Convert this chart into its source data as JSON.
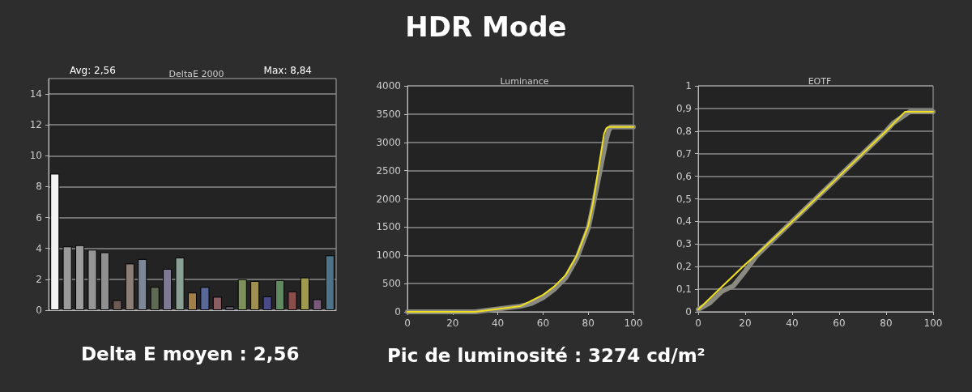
{
  "chart_data": [
    {
      "type": "other",
      "title": "HDR Mode"
    },
    {
      "type": "bar",
      "title": "DeltaE 2000",
      "annotations": [
        "Avg: 2,56",
        "Max: 8,84",
        "Delta E moyen : 2,56"
      ],
      "categories": [
        null,
        null,
        null,
        null,
        null,
        null,
        null,
        null,
        null,
        null,
        null,
        null,
        null,
        null,
        null,
        null,
        null,
        null,
        null,
        null,
        null,
        null,
        null
      ],
      "values": [
        8.84,
        4.13,
        4.21,
        3.92,
        3.75,
        0.65,
        3.02,
        3.31,
        1.51,
        2.68,
        3.41,
        1.14,
        1.5,
        0.87,
        0.25,
        2.0,
        1.89,
        0.9,
        1.95,
        1.22,
        2.12,
        0.71,
        3.55
      ],
      "colors": [
        "#f2f2f2",
        "#9a9a9a",
        "#9c9c9c",
        "#959595",
        "#909090",
        "#6e5a55",
        "#8a7e76",
        "#7c8898",
        "#5e6a52",
        "#7e7a94",
        "#8aa094",
        "#a08048",
        "#5a6898",
        "#8a5e62",
        "#5e5a66",
        "#7e905a",
        "#a09050",
        "#4a4a88",
        "#5e8a5e",
        "#8a4e4a",
        "#a09a50",
        "#7a5a7a",
        "#4e7288"
      ],
      "ylim": [
        0,
        15
      ],
      "yticks": [
        0,
        2,
        4,
        6,
        8,
        10,
        12,
        14
      ],
      "grid": "y"
    },
    {
      "type": "line",
      "title": "Luminance",
      "annotations": [
        "Pic de luminosité : 3274 cd/m²"
      ],
      "series": [
        {
          "color": "#8a8a80",
          "x": [
            0,
            30,
            40,
            50,
            55,
            60,
            65,
            70,
            75,
            80,
            82,
            84,
            86,
            88,
            89,
            90,
            100
          ],
          "values": [
            0,
            0,
            50,
            100,
            150,
            250,
            400,
            600,
            950,
            1480,
            1850,
            2250,
            2650,
            3050,
            3200,
            3274,
            3274
          ]
        },
        {
          "color": "#f0e020",
          "x": [
            0,
            30,
            40,
            50,
            55,
            60,
            65,
            70,
            75,
            80,
            82,
            84,
            86,
            87,
            88,
            89,
            100
          ],
          "values": [
            0,
            0,
            50,
            100,
            200,
            300,
            450,
            650,
            1000,
            1520,
            1900,
            2400,
            2900,
            3150,
            3250,
            3274,
            3274
          ]
        }
      ],
      "xlim": [
        0,
        100
      ],
      "xticks": [
        0,
        20,
        40,
        60,
        80,
        100
      ],
      "ylim": [
        0,
        4000
      ],
      "yticks": [
        0,
        500,
        1000,
        1500,
        2000,
        2500,
        3000,
        3500,
        4000
      ],
      "grid": "y"
    },
    {
      "type": "line",
      "title": "EOTF",
      "series": [
        {
          "color": "#8a8a80",
          "x": [
            0,
            5,
            10,
            15,
            20,
            25,
            40,
            60,
            80,
            83,
            90,
            100
          ],
          "values": [
            0.01,
            0.04,
            0.09,
            0.115,
            0.18,
            0.25,
            0.4,
            0.6,
            0.8,
            0.835,
            0.885,
            0.885
          ]
        },
        {
          "color": "#f0e020",
          "x": [
            0,
            10,
            20,
            25,
            40,
            60,
            80,
            88,
            100
          ],
          "values": [
            0.01,
            0.11,
            0.21,
            0.255,
            0.4,
            0.6,
            0.8,
            0.885,
            0.885
          ]
        }
      ],
      "xlim": [
        0,
        100
      ],
      "xticks": [
        0,
        20,
        40,
        60,
        80,
        100
      ],
      "ylim": [
        0,
        1
      ],
      "yticks": [
        0,
        {
          "value": 0.1,
          "label": "0,1"
        },
        {
          "value": 0.2,
          "label": "0,2"
        },
        {
          "value": 0.3,
          "label": "0,3"
        },
        {
          "value": 0.4,
          "label": "0,4"
        },
        {
          "value": 0.5,
          "label": "0,5"
        },
        {
          "value": 0.6,
          "label": "0,6"
        },
        {
          "value": 0.7,
          "label": "0,7"
        },
        {
          "value": 0.8,
          "label": "0,8"
        },
        {
          "value": 0.9,
          "label": "0,9"
        },
        1
      ],
      "grid": "y"
    }
  ]
}
